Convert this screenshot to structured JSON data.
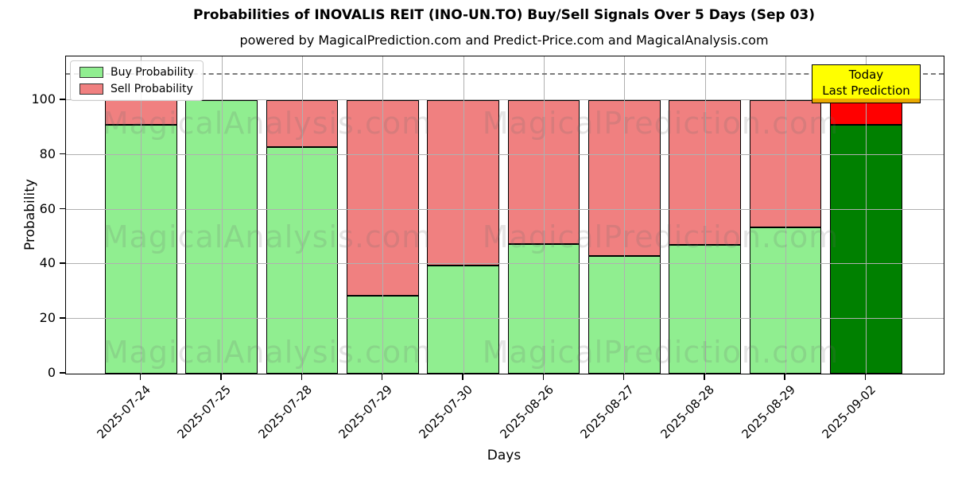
{
  "title": "Probabilities of INOVALIS REIT (INO-UN.TO) Buy/Sell Signals Over 5 Days (Sep 03)",
  "subtitle": "powered by MagicalPrediction.com and Predict-Price.com and MagicalAnalysis.com",
  "chart_data": {
    "type": "bar",
    "stacked": true,
    "title": "Probabilities of INOVALIS REIT (INO-UN.TO) Buy/Sell Signals Over 5 Days (Sep 03)",
    "xlabel": "Days",
    "ylabel": "Probability",
    "categories": [
      "2025-07-24",
      "2025-07-25",
      "2025-07-28",
      "2025-07-29",
      "2025-07-30",
      "2025-08-26",
      "2025-08-27",
      "2025-08-28",
      "2025-08-29",
      "2025-09-02"
    ],
    "series": [
      {
        "name": "Buy Probability",
        "color": "#90ee90",
        "values": [
          91,
          100,
          83,
          28.5,
          39.5,
          47.5,
          43,
          47,
          53.5,
          91
        ]
      },
      {
        "name": "Sell Probability",
        "color": "#f08080",
        "values": [
          9,
          0,
          17,
          71.5,
          60.5,
          52.5,
          57,
          53,
          46.5,
          9
        ]
      }
    ],
    "today_index": 9,
    "today_colors": {
      "buy": "#008000",
      "sell": "#ff0000"
    },
    "bar_edge_color": "#000000",
    "ylim": [
      0,
      116
    ],
    "yticks": [
      0,
      20,
      40,
      60,
      80,
      100
    ],
    "dashed_line_y": 110,
    "grid": true,
    "grid_color": "#b0b0b0",
    "legend_position": "upper left"
  },
  "today_label": {
    "line1": "Today",
    "line2": "Last Prediction",
    "bg": "#ffff00"
  },
  "watermarks": {
    "left": "MagicalAnalysis.com",
    "right": "MagicalPrediction.com"
  }
}
